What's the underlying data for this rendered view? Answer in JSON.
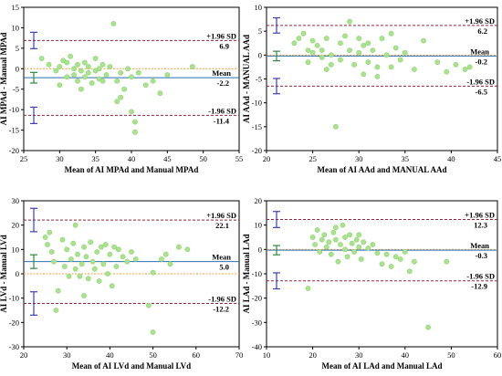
{
  "chart_data": [
    {
      "type": "scatter",
      "xlabel": "Mean of AI MPAd and Manual MPAd",
      "ylabel": "AI MPAd - Manual MPAd",
      "xlim": [
        25,
        55
      ],
      "ylim": [
        -20,
        15
      ],
      "xticks": [
        25,
        30,
        35,
        40,
        45,
        50,
        55
      ],
      "yticks": [
        -20,
        -15,
        -10,
        -5,
        0,
        5,
        10,
        15
      ],
      "grid": false,
      "mean": -2.2,
      "upper_loa": 6.9,
      "lower_loa": -11.4,
      "ci_mean": [
        -3.5,
        -0.9
      ],
      "ci_upper": [
        4.9,
        8.9
      ],
      "ci_lower": [
        -13.4,
        -9.4
      ],
      "labels": {
        "upper_title": "+1.96 SD",
        "upper_value": "6.9",
        "mean_title": "Mean",
        "mean_value": "-2.2",
        "lower_title": "-1.96 SD",
        "lower_value": "-11.4"
      },
      "points": [
        [
          27.5,
          2.5
        ],
        [
          28.5,
          1.0
        ],
        [
          29.5,
          -0.5
        ],
        [
          30.0,
          0.5
        ],
        [
          30.5,
          2.0
        ],
        [
          31.0,
          -2.0
        ],
        [
          31.0,
          1.5
        ],
        [
          31.5,
          3.0
        ],
        [
          32.0,
          0.0
        ],
        [
          32.0,
          -1.5
        ],
        [
          32.5,
          1.0
        ],
        [
          32.5,
          -3.0
        ],
        [
          33.0,
          -0.5
        ],
        [
          33.0,
          -5.0
        ],
        [
          33.5,
          1.5
        ],
        [
          33.5,
          -2.0
        ],
        [
          34.0,
          0.5
        ],
        [
          34.0,
          -1.0
        ],
        [
          34.5,
          -3.5
        ],
        [
          35.0,
          2.5
        ],
        [
          35.0,
          -0.5
        ],
        [
          35.5,
          0.0
        ],
        [
          35.5,
          -2.5
        ],
        [
          36.0,
          1.0
        ],
        [
          36.5,
          -1.5
        ],
        [
          37.0,
          0.5
        ],
        [
          37.5,
          11.0
        ],
        [
          38.0,
          -3.0
        ],
        [
          38.0,
          -8.0
        ],
        [
          38.5,
          -1.0
        ],
        [
          39.0,
          -5.0
        ],
        [
          39.5,
          0.0
        ],
        [
          40.0,
          -2.0
        ],
        [
          40.0,
          -10.5
        ],
        [
          40.5,
          -13.0
        ],
        [
          40.5,
          -15.5
        ],
        [
          41.0,
          -1.0
        ],
        [
          42.0,
          -4.0
        ],
        [
          43.0,
          -3.0
        ],
        [
          44.0,
          -6.0
        ],
        [
          45.0,
          -1.5
        ],
        [
          48.5,
          0.5
        ],
        [
          30.0,
          -4.0
        ],
        [
          36.0,
          -3.0
        ],
        [
          38.5,
          -7.0
        ]
      ]
    },
    {
      "type": "scatter",
      "xlabel": "Mean of AI AAd and MANUAL AAd",
      "ylabel": "AI AAd - MANUAL AAd",
      "xlim": [
        20,
        45
      ],
      "ylim": [
        -20,
        10
      ],
      "xticks": [
        20,
        25,
        30,
        35,
        40,
        45
      ],
      "yticks": [
        -20,
        -15,
        -10,
        -5,
        0,
        5,
        10
      ],
      "grid": false,
      "mean": -0.2,
      "upper_loa": 6.2,
      "lower_loa": -6.5,
      "ci_mean": [
        -1.2,
        0.8
      ],
      "ci_upper": [
        4.6,
        7.8
      ],
      "ci_lower": [
        -8.1,
        -4.9
      ],
      "labels": {
        "upper_title": "+1.96 SD",
        "upper_value": "6.2",
        "mean_title": "Mean",
        "mean_value": "-0.2",
        "lower_title": "-1.96 SD",
        "lower_value": "-6.5"
      },
      "points": [
        [
          23.0,
          2.5
        ],
        [
          23.5,
          3.5
        ],
        [
          24.0,
          4.5
        ],
        [
          24.5,
          1.0
        ],
        [
          24.5,
          -1.5
        ],
        [
          25.0,
          3.0
        ],
        [
          25.0,
          0.5
        ],
        [
          25.5,
          2.0
        ],
        [
          26.0,
          1.0
        ],
        [
          26.0,
          -0.5
        ],
        [
          26.5,
          3.5
        ],
        [
          27.0,
          0.0
        ],
        [
          27.0,
          -2.0
        ],
        [
          27.5,
          -15.0
        ],
        [
          28.0,
          2.5
        ],
        [
          28.0,
          -1.0
        ],
        [
          28.5,
          4.0
        ],
        [
          29.0,
          7.0
        ],
        [
          29.0,
          1.0
        ],
        [
          29.5,
          -2.0
        ],
        [
          30.0,
          3.5
        ],
        [
          30.0,
          0.5
        ],
        [
          30.5,
          -4.0
        ],
        [
          31.0,
          2.5
        ],
        [
          31.0,
          -1.5
        ],
        [
          31.5,
          1.0
        ],
        [
          32.0,
          -2.5
        ],
        [
          32.5,
          3.5
        ],
        [
          33.0,
          0.0
        ],
        [
          33.5,
          4.5
        ],
        [
          33.5,
          -2.5
        ],
        [
          34.0,
          1.5
        ],
        [
          34.5,
          -1.0
        ],
        [
          35.0,
          0.5
        ],
        [
          36.0,
          -3.0
        ],
        [
          37.0,
          3.0
        ],
        [
          38.5,
          -1.5
        ],
        [
          39.5,
          -3.5
        ],
        [
          40.5,
          -2.0
        ],
        [
          41.5,
          -3.0
        ],
        [
          42.0,
          -2.5
        ],
        [
          26.5,
          -3.0
        ],
        [
          30.5,
          2.0
        ],
        [
          32.0,
          -4.5
        ]
      ]
    },
    {
      "type": "scatter",
      "xlabel": "Mean of AI LVd and Manual LVd",
      "ylabel": "AI LVd - Manual LVd",
      "xlim": [
        20,
        70
      ],
      "ylim": [
        -30,
        30
      ],
      "xticks": [
        20,
        30,
        40,
        50,
        60,
        70
      ],
      "yticks": [
        -30,
        -20,
        -10,
        0,
        10,
        20,
        30
      ],
      "grid": false,
      "mean": 5.0,
      "upper_loa": 22.1,
      "lower_loa": -12.2,
      "ci_mean": [
        2.2,
        7.8
      ],
      "ci_upper": [
        17.3,
        26.9
      ],
      "ci_lower": [
        -17.0,
        -7.4
      ],
      "labels": {
        "upper_title": "+1.96 SD",
        "upper_value": "22.1",
        "mean_title": "Mean",
        "mean_value": "5.0",
        "lower_title": "-1.96 SD",
        "lower_value": "-12.2"
      },
      "points": [
        [
          25.0,
          15.0
        ],
        [
          25.5,
          12.0
        ],
        [
          26.0,
          17.0
        ],
        [
          26.5,
          9.0
        ],
        [
          27.0,
          5.0
        ],
        [
          27.5,
          -15.0
        ],
        [
          28.0,
          -7.0
        ],
        [
          29.0,
          14.0
        ],
        [
          29.5,
          3.0
        ],
        [
          30.0,
          10.0
        ],
        [
          30.5,
          -1.0
        ],
        [
          31.0,
          6.0
        ],
        [
          31.5,
          12.5
        ],
        [
          32.0,
          20.0
        ],
        [
          32.0,
          2.0
        ],
        [
          32.5,
          8.0
        ],
        [
          33.0,
          -1.0
        ],
        [
          33.5,
          4.0
        ],
        [
          34.0,
          11.0
        ],
        [
          34.5,
          7.0
        ],
        [
          35.0,
          -2.0
        ],
        [
          35.5,
          13.0
        ],
        [
          36.0,
          5.0
        ],
        [
          36.5,
          2.0
        ],
        [
          37.0,
          9.0
        ],
        [
          37.5,
          -3.0
        ],
        [
          38.0,
          11.0
        ],
        [
          38.5,
          4.0
        ],
        [
          39.0,
          12.0
        ],
        [
          39.5,
          0.0
        ],
        [
          40.0,
          8.0
        ],
        [
          40.5,
          -5.0
        ],
        [
          41.0,
          11.0
        ],
        [
          41.5,
          3.0
        ],
        [
          42.0,
          10.0
        ],
        [
          43.0,
          7.0
        ],
        [
          44.0,
          5.0
        ],
        [
          45.0,
          9.0
        ],
        [
          46.0,
          6.0
        ],
        [
          49.0,
          -13.0
        ],
        [
          50.0,
          -24.0
        ],
        [
          50.0,
          0.5
        ],
        [
          52.0,
          6.0
        ],
        [
          53.0,
          8.0
        ],
        [
          54.0,
          4.0
        ],
        [
          56.0,
          11.0
        ],
        [
          58.0,
          10.0
        ],
        [
          34.0,
          -9.0
        ]
      ]
    },
    {
      "type": "scatter",
      "xlabel": "Mean of AI LAd and Manual LAd",
      "ylabel": "AI LAd - Manual LAd",
      "xlim": [
        10,
        60
      ],
      "ylim": [
        -40,
        20
      ],
      "xticks": [
        10,
        20,
        30,
        40,
        50,
        60
      ],
      "yticks": [
        -40,
        -30,
        -20,
        -10,
        0,
        10,
        20
      ],
      "grid": false,
      "mean": -0.3,
      "upper_loa": 12.3,
      "lower_loa": -12.9,
      "ci_mean": [
        -2.2,
        1.6
      ],
      "ci_upper": [
        9.0,
        15.6
      ],
      "ci_lower": [
        -16.2,
        -9.6
      ],
      "labels": {
        "upper_title": "+1.96 SD",
        "upper_value": "12.3",
        "mean_title": "Mean",
        "mean_value": "-0.3",
        "lower_title": "-1.96 SD",
        "lower_value": "-12.9"
      },
      "points": [
        [
          19.0,
          -16.0
        ],
        [
          20.0,
          5.0
        ],
        [
          20.5,
          2.0
        ],
        [
          21.0,
          8.0
        ],
        [
          21.5,
          -1.0
        ],
        [
          22.0,
          4.0
        ],
        [
          22.5,
          6.0
        ],
        [
          23.0,
          1.0
        ],
        [
          23.5,
          3.0
        ],
        [
          24.0,
          -2.0
        ],
        [
          24.5,
          7.0
        ],
        [
          25.0,
          4.0
        ],
        [
          25.5,
          -5.0
        ],
        [
          26.0,
          2.0
        ],
        [
          26.5,
          10.0
        ],
        [
          27.0,
          5.0
        ],
        [
          27.0,
          0.0
        ],
        [
          27.5,
          -3.0
        ],
        [
          28.0,
          6.0
        ],
        [
          28.5,
          2.5
        ],
        [
          29.0,
          -1.0
        ],
        [
          29.5,
          4.0
        ],
        [
          30.0,
          1.0
        ],
        [
          30.5,
          -4.0
        ],
        [
          31.0,
          3.0
        ],
        [
          32.0,
          0.5
        ],
        [
          33.0,
          2.0
        ],
        [
          34.0,
          -1.5
        ],
        [
          35.0,
          -6.0
        ],
        [
          36.0,
          -2.0
        ],
        [
          37.0,
          -7.0
        ],
        [
          38.0,
          -3.0
        ],
        [
          39.0,
          -4.0
        ],
        [
          40.0,
          -1.0
        ],
        [
          41.0,
          -9.0
        ],
        [
          42.0,
          -5.0
        ],
        [
          45.0,
          -32.0
        ],
        [
          49.0,
          -5.0
        ],
        [
          25.0,
          9.0
        ],
        [
          30.0,
          6.0
        ]
      ]
    }
  ]
}
